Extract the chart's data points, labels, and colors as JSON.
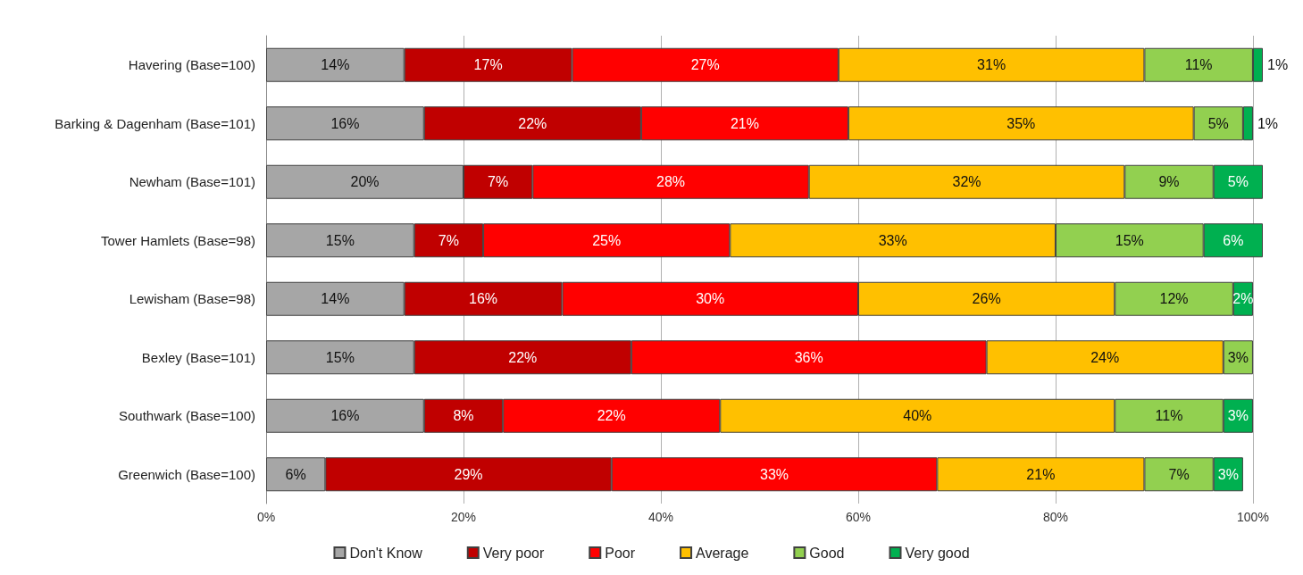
{
  "chart_data": {
    "type": "bar",
    "orientation": "horizontal",
    "stacked": true,
    "categories": [
      "Havering (Base=100)",
      "Barking & Dagenham (Base=101)",
      "Newham (Base=101)",
      "Tower Hamlets (Base=98)",
      "Lewisham (Base=98)",
      "Bexley (Base=101)",
      "Southwark (Base=100)",
      "Greenwich (Base=100)"
    ],
    "series": [
      {
        "name": "Don't Know",
        "color": "#a6a6a6",
        "values": [
          14,
          16,
          20,
          15,
          14,
          15,
          16,
          6
        ],
        "value_labels": [
          "14%",
          "16%",
          "20%",
          "15%",
          "14%",
          "15%",
          "16%",
          "6%"
        ]
      },
      {
        "name": "Very poor",
        "color": "#c00000",
        "values": [
          17,
          22,
          7,
          7,
          16,
          22,
          8,
          29
        ],
        "value_labels": [
          "17%",
          "22%",
          "7%",
          "7%",
          "16%",
          "22%",
          "8%",
          "29%"
        ]
      },
      {
        "name": "Poor",
        "color": "#ff0000",
        "values": [
          27,
          21,
          28,
          25,
          30,
          36,
          22,
          33
        ],
        "value_labels": [
          "27%",
          "21%",
          "28%",
          "25%",
          "30%",
          "36%",
          "22%",
          "33%"
        ]
      },
      {
        "name": "Average",
        "color": "#ffc000",
        "values": [
          31,
          35,
          32,
          33,
          26,
          24,
          40,
          21
        ],
        "value_labels": [
          "31%",
          "35%",
          "32%",
          "33%",
          "26%",
          "24%",
          "40%",
          "21%"
        ]
      },
      {
        "name": "Good",
        "color": "#92d050",
        "values": [
          11,
          5,
          9,
          15,
          12,
          3,
          11,
          7
        ],
        "value_labels": [
          "11%",
          "5%",
          "9%",
          "15%",
          "12%",
          "3%",
          "11%",
          "7%"
        ]
      },
      {
        "name": "Very good",
        "color": "#00b050",
        "values": [
          1,
          1,
          5,
          6,
          2,
          null,
          3,
          3
        ],
        "value_labels": [
          "1%",
          "1%",
          "5%",
          "6%",
          "2%",
          null,
          "3%",
          "3%"
        ]
      }
    ],
    "xlim": [
      0,
      101
    ],
    "xticks": [
      {
        "value": 0,
        "label": "0%"
      },
      {
        "value": 20,
        "label": "20%"
      },
      {
        "value": 40,
        "label": "40%"
      },
      {
        "value": 60,
        "label": "60%"
      },
      {
        "value": 80,
        "label": "80%"
      },
      {
        "value": 100,
        "label": "100%"
      }
    ],
    "grid": "x",
    "legend": "bottom"
  }
}
